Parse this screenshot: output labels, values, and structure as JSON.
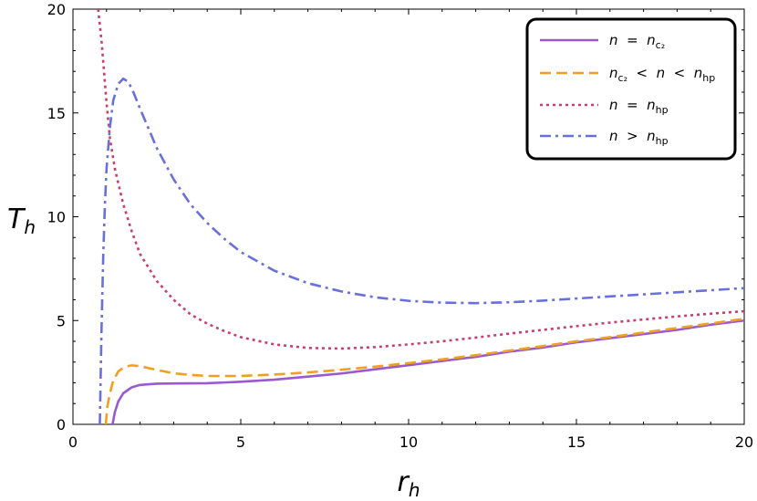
{
  "chart_data": {
    "type": "line",
    "title": "",
    "xlabel": "r_h",
    "ylabel": "T_h",
    "xlim": [
      0,
      20
    ],
    "ylim": [
      0,
      20
    ],
    "x_ticks": [
      "0",
      "5",
      "10",
      "15",
      "20"
    ],
    "y_ticks": [
      "0",
      "5",
      "10",
      "15",
      "20"
    ],
    "grid": false,
    "legend_position": "top-right",
    "series": [
      {
        "name": "n = n_c2",
        "color": "#9b59d0",
        "dash": "solid",
        "points": [
          [
            1.18,
            0
          ],
          [
            1.25,
            0.6
          ],
          [
            1.35,
            1.1
          ],
          [
            1.5,
            1.5
          ],
          [
            1.75,
            1.78
          ],
          [
            2.0,
            1.9
          ],
          [
            2.5,
            1.96
          ],
          [
            3.0,
            1.97
          ],
          [
            4.0,
            1.98
          ],
          [
            5.0,
            2.05
          ],
          [
            6.0,
            2.15
          ],
          [
            7.0,
            2.3
          ],
          [
            8.0,
            2.45
          ],
          [
            9.0,
            2.65
          ],
          [
            10.0,
            2.85
          ],
          [
            11.0,
            3.05
          ],
          [
            12.0,
            3.25
          ],
          [
            13.0,
            3.5
          ],
          [
            14.0,
            3.7
          ],
          [
            15.0,
            3.95
          ],
          [
            16.0,
            4.15
          ],
          [
            17.0,
            4.35
          ],
          [
            18.0,
            4.55
          ],
          [
            19.0,
            4.8
          ],
          [
            20.0,
            5.0
          ]
        ]
      },
      {
        "name": "n_c2 < n < n_hp",
        "color": "#f0a020",
        "dash": "dashed",
        "points": [
          [
            0.98,
            0
          ],
          [
            1.02,
            0.8
          ],
          [
            1.1,
            1.5
          ],
          [
            1.2,
            2.1
          ],
          [
            1.35,
            2.55
          ],
          [
            1.55,
            2.78
          ],
          [
            1.75,
            2.84
          ],
          [
            2.0,
            2.8
          ],
          [
            2.5,
            2.62
          ],
          [
            3.0,
            2.46
          ],
          [
            3.5,
            2.38
          ],
          [
            4.0,
            2.33
          ],
          [
            5.0,
            2.33
          ],
          [
            6.0,
            2.4
          ],
          [
            7.0,
            2.5
          ],
          [
            8.0,
            2.63
          ],
          [
            9.0,
            2.78
          ],
          [
            10.0,
            2.95
          ],
          [
            11.0,
            3.13
          ],
          [
            12.0,
            3.33
          ],
          [
            13.0,
            3.55
          ],
          [
            14.0,
            3.77
          ],
          [
            15.0,
            4.0
          ],
          [
            16.0,
            4.2
          ],
          [
            17.0,
            4.42
          ],
          [
            18.0,
            4.64
          ],
          [
            19.0,
            4.86
          ],
          [
            20.0,
            5.08
          ]
        ]
      },
      {
        "name": "n = n_hp",
        "color": "#c8406a",
        "dash": "dotted",
        "points": [
          [
            0.75,
            20
          ],
          [
            0.85,
            18.5
          ],
          [
            1.0,
            15.5
          ],
          [
            1.1,
            13.8
          ],
          [
            1.25,
            12.3
          ],
          [
            1.5,
            10.6
          ],
          [
            1.75,
            9.3
          ],
          [
            2.0,
            8.2
          ],
          [
            2.5,
            6.9
          ],
          [
            3.0,
            6.0
          ],
          [
            3.5,
            5.3
          ],
          [
            4.0,
            4.85
          ],
          [
            4.5,
            4.5
          ],
          [
            5.0,
            4.2
          ],
          [
            6.0,
            3.85
          ],
          [
            7.0,
            3.68
          ],
          [
            8.0,
            3.65
          ],
          [
            9.0,
            3.72
          ],
          [
            10.0,
            3.85
          ],
          [
            11.0,
            4.0
          ],
          [
            12.0,
            4.18
          ],
          [
            13.0,
            4.37
          ],
          [
            14.0,
            4.55
          ],
          [
            15.0,
            4.73
          ],
          [
            16.0,
            4.9
          ],
          [
            17.0,
            5.05
          ],
          [
            18.0,
            5.2
          ],
          [
            19.0,
            5.33
          ],
          [
            20.0,
            5.45
          ]
        ]
      },
      {
        "name": "n > n_hp",
        "color": "#6870dc",
        "dash": "dashdot",
        "points": [
          [
            0.8,
            0
          ],
          [
            0.85,
            4.5
          ],
          [
            0.9,
            8.0
          ],
          [
            0.95,
            10.5
          ],
          [
            1.0,
            12.3
          ],
          [
            1.1,
            14.3
          ],
          [
            1.2,
            15.6
          ],
          [
            1.35,
            16.4
          ],
          [
            1.5,
            16.65
          ],
          [
            1.65,
            16.5
          ],
          [
            1.8,
            16.0
          ],
          [
            2.0,
            15.2
          ],
          [
            2.5,
            13.3
          ],
          [
            3.0,
            11.8
          ],
          [
            3.5,
            10.6
          ],
          [
            4.0,
            9.7
          ],
          [
            4.5,
            8.95
          ],
          [
            5.0,
            8.3
          ],
          [
            6.0,
            7.4
          ],
          [
            7.0,
            6.8
          ],
          [
            8.0,
            6.4
          ],
          [
            9.0,
            6.12
          ],
          [
            10.0,
            5.95
          ],
          [
            11.0,
            5.86
          ],
          [
            12.0,
            5.84
          ],
          [
            13.0,
            5.88
          ],
          [
            14.0,
            5.96
          ],
          [
            15.0,
            6.06
          ],
          [
            16.0,
            6.16
          ],
          [
            17.0,
            6.26
          ],
          [
            18.0,
            6.36
          ],
          [
            19.0,
            6.46
          ],
          [
            20.0,
            6.56
          ]
        ]
      }
    ]
  },
  "legend": {
    "entries": [
      {
        "lhs": "n",
        "op1": "=",
        "mid": "n",
        "mid_sub": "c₂",
        "op2": "",
        "rhs": "",
        "rhs_sub": ""
      },
      {
        "lhs": "n",
        "lhs_sub": "c₂",
        "op1": "<",
        "mid": "n",
        "op2": "<",
        "rhs": "n",
        "rhs_sub": "hp"
      },
      {
        "lhs": "n",
        "op1": "=",
        "mid": "n",
        "mid_sub": "hp"
      },
      {
        "lhs": "n",
        "op1": ">",
        "mid": "n",
        "mid_sub": "hp"
      }
    ]
  }
}
